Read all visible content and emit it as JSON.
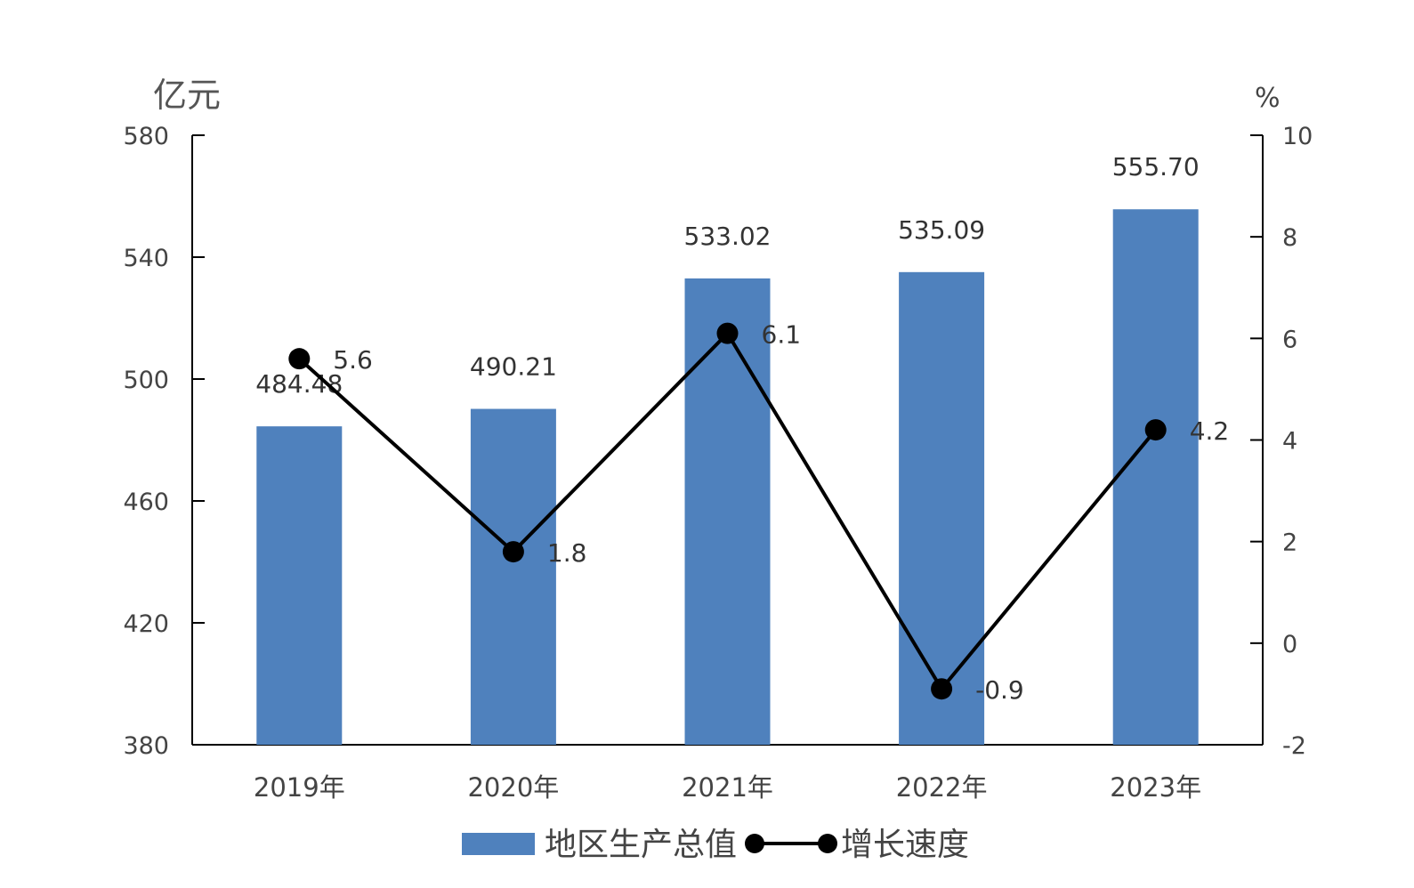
{
  "chart_data": {
    "type": "bar",
    "title": "",
    "categories": [
      "2019年",
      "2020年",
      "2021年",
      "2022年",
      "2023年"
    ],
    "y_left": {
      "label": "亿元",
      "ylim": [
        380,
        580
      ],
      "ticks": [
        "380",
        "420",
        "460",
        "500",
        "540",
        "580"
      ]
    },
    "y_right": {
      "label": "%",
      "ylim": [
        -2,
        10
      ],
      "ticks": [
        "-2",
        "0",
        "2",
        "4",
        "6",
        "8",
        "10"
      ]
    },
    "series": [
      {
        "name": "地区生产总值",
        "type": "bar",
        "axis": "left",
        "color": "#4f81bd",
        "values": [
          484.48,
          490.21,
          533.02,
          535.09,
          555.7
        ],
        "labels": [
          "484.48",
          "490.21",
          "533.02",
          "535.09",
          "555.70"
        ]
      },
      {
        "name": "增长速度",
        "type": "line",
        "axis": "right",
        "color": "#000000",
        "values": [
          5.6,
          1.8,
          6.1,
          -0.9,
          4.2
        ],
        "labels": [
          "5.6",
          "1.8",
          "6.1",
          "-0.9",
          "4.2"
        ]
      }
    ],
    "grid": false,
    "legend": "bottom"
  }
}
